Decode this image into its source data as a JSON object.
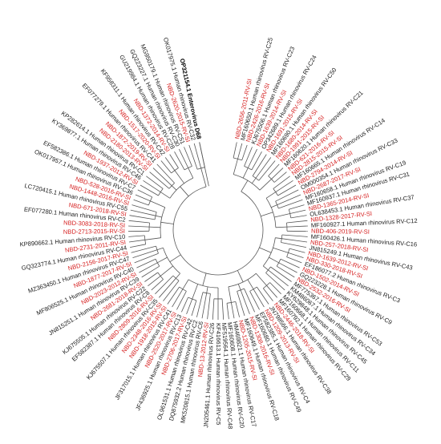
{
  "tree": {
    "colors": {
      "nbd": "#d62020",
      "reference": "#1a1a1a",
      "branch": "#555555"
    },
    "leaves": [
      {
        "label": "NBD-2656-2011-RV-SI",
        "group": "nbd"
      },
      {
        "label": "MF160650.1 Human rhinovirus RV-C25",
        "group": "reference"
      },
      {
        "label": "NBD-2426-2016-RV-SI",
        "group": "nbd"
      },
      {
        "label": "KJ675506.1 Human rhinovirus RV-C23",
        "group": "reference"
      },
      {
        "label": "NBD-1639-2014-RV-SI",
        "group": "nbd"
      },
      {
        "label": "OP342689.1 Human rhinovirus RV-C24",
        "group": "reference"
      },
      {
        "label": "NBD-1691-2015-RV-SI",
        "group": "nbd"
      },
      {
        "label": "MF160690.1 Human rhinovirus RV-C50",
        "group": "reference"
      },
      {
        "label": "NBD-1680-2014-RV-SI",
        "group": "nbd"
      },
      {
        "label": "NBD-1991-2015-RV-SI",
        "group": "nbd"
      },
      {
        "label": "MF160620.1 Human rhinovirus RV-C21",
        "group": "reference"
      },
      {
        "label": "NBD-621-2016-RV-SI",
        "group": "nbd"
      },
      {
        "label": "NBD-2815-2015-RV-SI",
        "group": "nbd"
      },
      {
        "label": "MF160665.1 Human rhinovirus RV-C14",
        "group": "reference"
      },
      {
        "label": "NBD-2794-2014-RV-SI",
        "group": "nbd"
      },
      {
        "label": "OM000354.1 Human rhinovirus RV-C33",
        "group": "reference"
      },
      {
        "label": "NBD-2687-2017-RV-SI",
        "group": "nbd"
      },
      {
        "label": "MF160658.1 Human rhinovirus RV-C19",
        "group": "reference"
      },
      {
        "label": "MF160937.1 Human rhinovirus RV-C31",
        "group": "reference"
      },
      {
        "label": "NBD-1365-2014-RV-SI",
        "group": "nbd"
      },
      {
        "label": "OL638453.1 Human rhinovirus RV-C37",
        "group": "reference"
      },
      {
        "label": "NBD-1328-2017-RV-SI",
        "group": "nbd"
      },
      {
        "label": "MF160927.1 Human rhinovirus RV-C12",
        "group": "reference"
      },
      {
        "label": "NBD-406-2019-RV-SI",
        "group": "nbd"
      },
      {
        "label": "MF160426.1 Human rhinovirus RV-C16",
        "group": "reference"
      },
      {
        "label": "NBD-257-2018-RV-SI",
        "group": "nbd"
      },
      {
        "label": "JN815249.1 Human rhinovirus RV-C43",
        "group": "reference"
      },
      {
        "label": "NBD-1639-2012-RV-SI",
        "group": "nbd"
      },
      {
        "label": "NBD-330-2018-RV-SI",
        "group": "nbd"
      },
      {
        "label": "EF186077.2 Human rhinovirus RV-C3",
        "group": "reference"
      },
      {
        "label": "NBD-1502-2014-RV-SI",
        "group": "nbd"
      },
      {
        "label": "GQ223228.1 Human rhinovirus RV-C9",
        "group": "reference"
      },
      {
        "label": "NBD-2532-2016-RV-SI",
        "group": "nbd"
      },
      {
        "label": "MF775367.1 Human rhinovirus RV-C53",
        "group": "reference"
      },
      {
        "label": "KM486067.1 Human rhinovirus RV-C34",
        "group": "reference"
      },
      {
        "label": "KY629848.1 Human rhinovirus RV-C45",
        "group": "reference"
      },
      {
        "label": "MF160668.1 Human rhinovirus RV-C11",
        "group": "reference"
      },
      {
        "label": "MF160792.1 Human rhinovirus RV-C29",
        "group": "reference"
      },
      {
        "label": "NBD-2446-2018-RV-SI",
        "group": "nbd"
      },
      {
        "label": "JN798566.1 Human rhinovirus RV-C38",
        "group": "reference"
      },
      {
        "label": "NBD-1209-2013-RV-SI",
        "group": "nbd"
      },
      {
        "label": "EF582385.1 Human rhinovirus RV-C4",
        "group": "reference"
      },
      {
        "label": "MF160680.1 Human rhinovirus RV-C49",
        "group": "reference"
      },
      {
        "label": "NBD-1308-2016-RV-SI",
        "group": "nbd"
      },
      {
        "label": "MF160649.1 Human rhinovirus RV-C18",
        "group": "reference"
      },
      {
        "label": "NBD-1205-2015-RV-SI",
        "group": "nbd"
      },
      {
        "label": "HM469821.1 Human rhinovirus RV-C17",
        "group": "reference"
      },
      {
        "label": "MF160608.1 Human rhinovirus RV-C20",
        "group": "reference"
      },
      {
        "label": "MF519564.1 Human rhinovirus RV-C48",
        "group": "reference"
      },
      {
        "label": "KF416613.1 Human rhinovirus RV-C5",
        "group": "reference"
      },
      {
        "label": "JN205461.1 Human rhinovirus RV-C26",
        "group": "reference"
      },
      {
        "label": "NBD-13-2012-RV-SI",
        "group": "nbd"
      },
      {
        "label": "MK520815.1 Human rhinovirus RV-C6",
        "group": "reference"
      },
      {
        "label": "DQ875932.2 Human rhinovirus RV-C2",
        "group": "reference"
      },
      {
        "label": "OL961531.1 Human rhinovirus RV-C42",
        "group": "reference"
      },
      {
        "label": "NBD-2706-2017-RV-SI",
        "group": "nbd"
      },
      {
        "label": "JF436925.1 Human rhinovirus RV-C13",
        "group": "reference"
      },
      {
        "label": "NBD-2520-2017-RV-SI",
        "group": "nbd"
      },
      {
        "label": "JF317015.1 Human rhinovirus RV-C41",
        "group": "reference"
      },
      {
        "label": "NBD-1918-2015-RV-SI",
        "group": "nbd"
      },
      {
        "label": "NBD-2348-2016-RV-SI",
        "group": "nbd"
      },
      {
        "label": "KJ675507.1 Human rhinovirus RV-C35",
        "group": "reference"
      },
      {
        "label": "NBD-2809-2016-RV-SI",
        "group": "nbd"
      },
      {
        "label": "EF582387.1 Human rhinovirus RV-C8",
        "group": "reference"
      },
      {
        "label": "KJ675505.1 Human rhinovirus RV-C22",
        "group": "reference"
      },
      {
        "label": "NBD-2681-2018-RV-SI",
        "group": "nbd"
      },
      {
        "label": "JN815251.1 Human rhinovirus RV-C39",
        "group": "reference"
      },
      {
        "label": "NBD-2023-2012-RV-SI",
        "group": "nbd"
      },
      {
        "label": "MF806525.1 Human rhinovirus RV-C40",
        "group": "reference"
      },
      {
        "label": "NBD-1877-2017-RV-SI",
        "group": "nbd"
      },
      {
        "label": "MZ363450.1 Human rhinovirus RV-C47",
        "group": "reference"
      },
      {
        "label": "NBD-2156-2017-RV-SI",
        "group": "nbd"
      },
      {
        "label": "GQ323774.1 Human rhinovirus RV-C44",
        "group": "reference"
      },
      {
        "label": "NBD-2731-2011-RV-SI",
        "group": "nbd"
      },
      {
        "label": "KP890662.1 Human rhinovirus RV-C10",
        "group": "reference"
      },
      {
        "label": "NBD-2713-2015-RV-SI",
        "group": "nbd"
      },
      {
        "label": "NBD-3083-2018-RV-SI",
        "group": "nbd"
      },
      {
        "label": "EF077280.1 Human rhinovirus RV-C2",
        "group": "reference"
      },
      {
        "label": "NBD-671-2018-RV-SI",
        "group": "nbd"
      },
      {
        "label": "LC720415.1 Human rhinovirus RV-C55",
        "group": "reference"
      },
      {
        "label": "NBD-1448-2016-RV-SI",
        "group": "nbd"
      },
      {
        "label": "NBD-528-2016-RV-SI",
        "group": "nbd"
      },
      {
        "label": "OK017957.1 Human rhinovirus RV-C36",
        "group": "reference"
      },
      {
        "label": "EF582386.1 Human rhinovirus RV-C7",
        "group": "reference"
      },
      {
        "label": "NBD-1937-2012-RV-SI",
        "group": "nbd"
      },
      {
        "label": "KY369877.1 Human rhinovirus RV-C46",
        "group": "reference"
      },
      {
        "label": "KP282614.1 Human rhinovirus RV-C1",
        "group": "reference"
      },
      {
        "label": "NBD-2180-2013-RV-SI",
        "group": "nbd"
      },
      {
        "label": "NBD-1872-2019-RV-SI",
        "group": "nbd"
      },
      {
        "label": "EF077279.1 Human rhinovirus RV-C41",
        "group": "reference"
      },
      {
        "label": "NBD-1517-2020-RV-SI",
        "group": "nbd"
      },
      {
        "label": "KF958311.1 Human rhinovirus RV-C42",
        "group": "reference"
      },
      {
        "label": "NBD-1372-2014-RV-SI",
        "group": "nbd"
      },
      {
        "label": "GU219984.1 Human rhinovirus RV-C28",
        "group": "reference"
      },
      {
        "label": "GQ223227.1 Human rhinovirus RV-C30",
        "group": "reference"
      },
      {
        "label": "MG950179.1 Human rhinovirus RV-C51",
        "group": "reference"
      },
      {
        "label": "NBD-2620-2015-RV-SI",
        "group": "nbd"
      },
      {
        "label": "OK017975.1 Human rhinovirus RV-C32",
        "group": "reference"
      },
      {
        "label": "OP321154.1 Enterovirus D68",
        "group": "outgroup"
      }
    ]
  }
}
